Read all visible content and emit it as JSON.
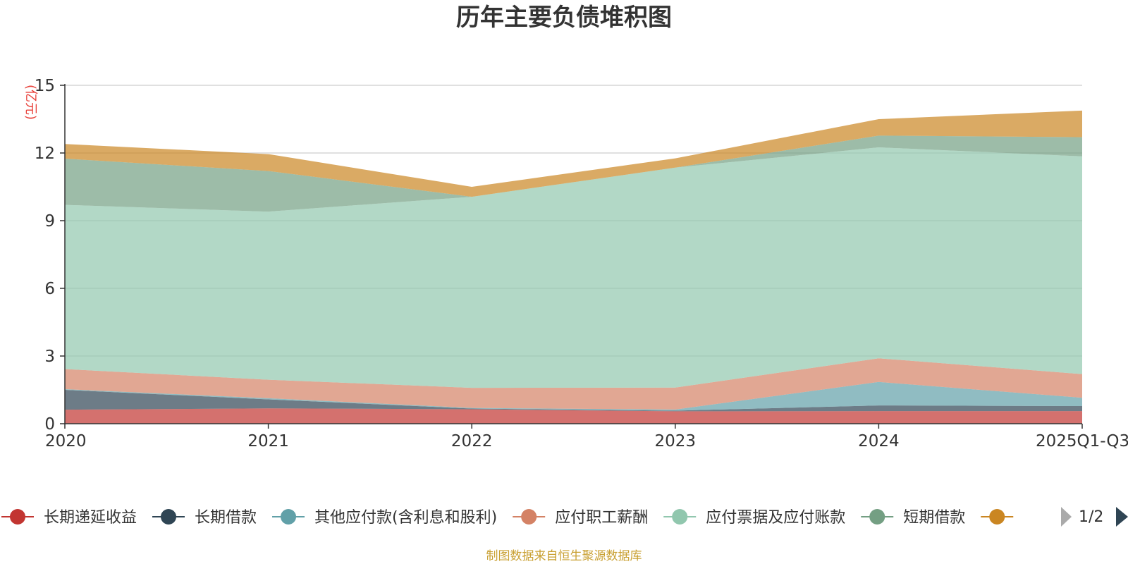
{
  "chart_data": {
    "type": "area",
    "stacked": true,
    "title": "历年主要负债堆积图",
    "ylabel": "(亿元)",
    "categories": [
      "2020",
      "2021",
      "2022",
      "2023",
      "2024",
      "2025Q1-Q3"
    ],
    "ylim": [
      0,
      15
    ],
    "yticks": [
      0,
      3,
      6,
      9,
      12,
      15
    ],
    "grid": true,
    "legend_position": "bottom",
    "series": [
      {
        "name": "长期递延收益",
        "color": "#c23531",
        "values": [
          0.62,
          0.68,
          0.64,
          0.55,
          0.56,
          0.56
        ]
      },
      {
        "name": "长期借款",
        "color": "#2f4554",
        "values": [
          0.88,
          0.4,
          0.03,
          0.03,
          0.25,
          0.22
        ]
      },
      {
        "name": "其他应付款(含利息和股利)",
        "color": "#61a0a8",
        "values": [
          0.03,
          0.05,
          0.03,
          0.05,
          1.04,
          0.37
        ]
      },
      {
        "name": "应付职工薪酬",
        "color": "#d48265",
        "values": [
          0.89,
          0.82,
          0.89,
          0.97,
          1.05,
          1.05
        ]
      },
      {
        "name": "应付票据及应付账款",
        "color": "#91c7ae",
        "values": [
          7.28,
          7.45,
          8.47,
          9.75,
          9.35,
          9.65
        ]
      },
      {
        "name": "短期借款",
        "color": "#749f83",
        "values": [
          2.05,
          1.8,
          0.0,
          0.0,
          0.52,
          0.85
        ]
      },
      {
        "name": "",
        "color": "#ca8622",
        "values": [
          0.65,
          0.75,
          0.44,
          0.41,
          0.73,
          1.18
        ]
      }
    ]
  },
  "legend": {
    "page_indicator": "1/2"
  },
  "footer": {
    "source": "制图数据来自恒生聚源数据库"
  }
}
